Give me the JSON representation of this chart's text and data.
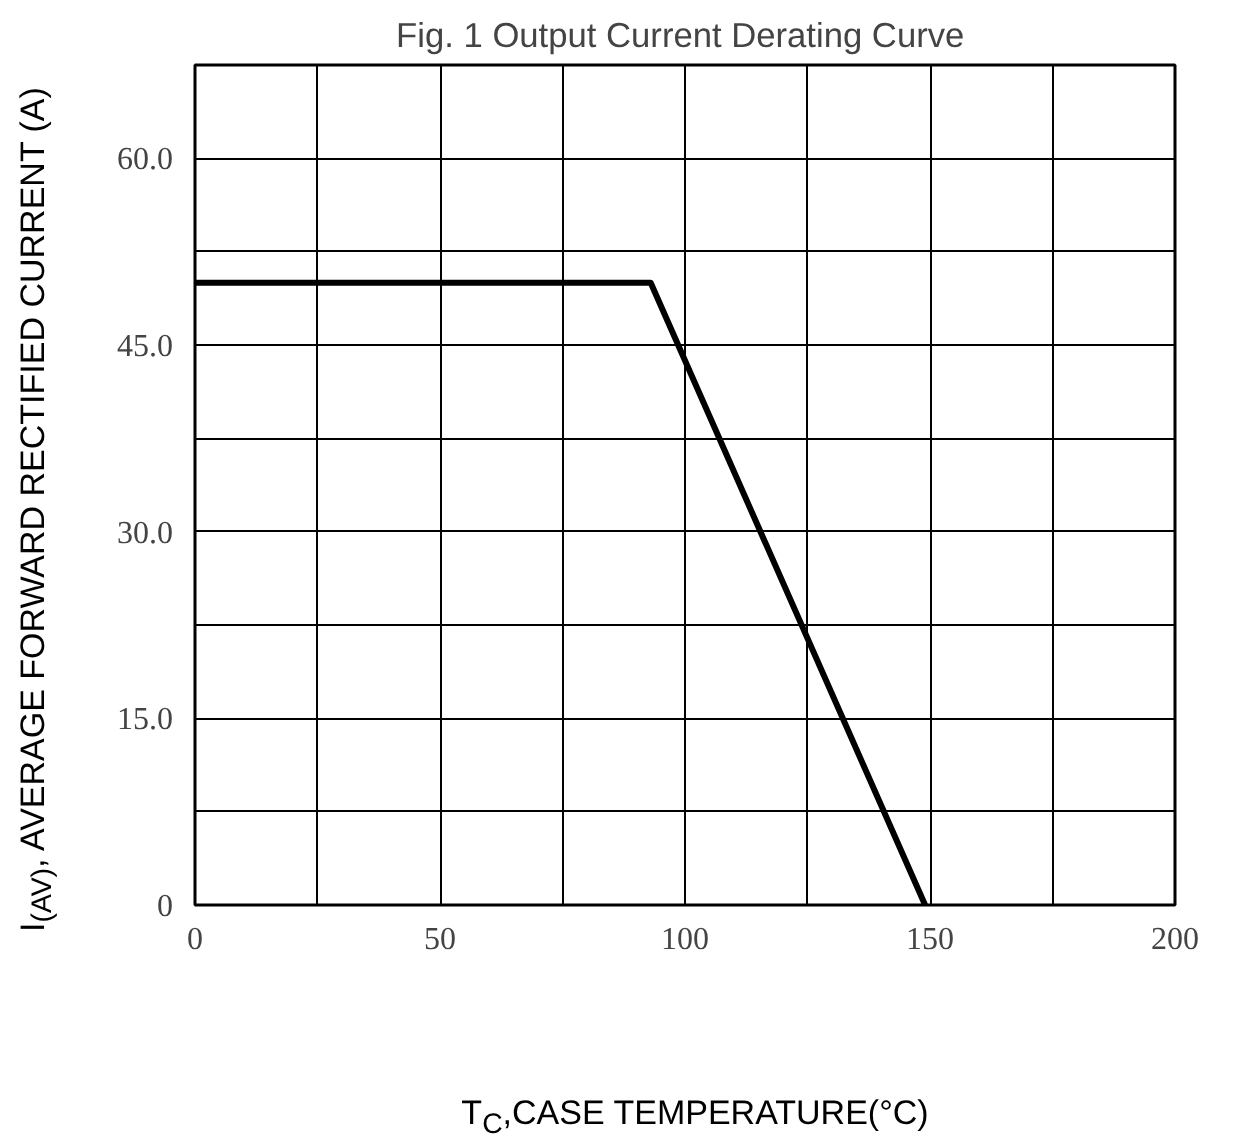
{
  "chart_data": {
    "type": "line",
    "title": "Fig. 1  Output Current Derating Curve",
    "xlabel": "T$_{C}$,CASE TEMPERATURE(°C)",
    "ylabel": "I$_{(AV)}$, AVERAGE FORWARD RECTIFIED CURRENT (A)",
    "x": [
      0,
      93,
      149
    ],
    "series": [
      {
        "color": "#000000",
        "values": [
          50,
          50,
          0
        ]
      }
    ],
    "xlim": [
      0,
      200
    ],
    "ylim": [
      0,
      67.5
    ],
    "xticks": [
      0,
      {
        "value": 25,
        "label": null
      },
      50,
      {
        "value": 75,
        "label": null
      },
      100,
      {
        "value": 125,
        "label": null
      },
      150,
      {
        "value": 175,
        "label": null
      },
      200
    ],
    "yticks": [
      {
        "value": 0,
        "label": "0"
      },
      {
        "value": 7.5,
        "label": null
      },
      {
        "value": 15,
        "label": "15.0"
      },
      {
        "value": 22.5,
        "label": null
      },
      {
        "value": 30,
        "label": "30.0"
      },
      {
        "value": 37.5,
        "label": null
      },
      {
        "value": 45,
        "label": "45.0"
      },
      {
        "value": 52.5,
        "label": null
      },
      {
        "value": 60,
        "label": "60.0"
      }
    ],
    "grid": true,
    "marker": "none",
    "line_style": "solid"
  }
}
